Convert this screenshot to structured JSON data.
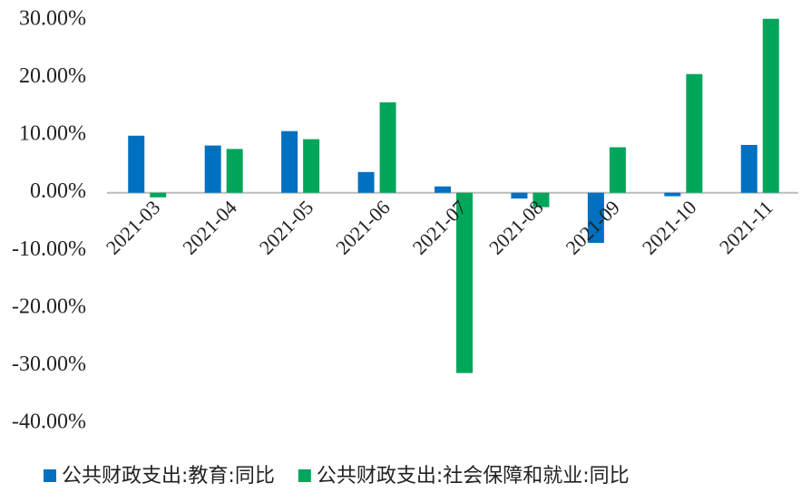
{
  "chart_data": {
    "type": "bar",
    "categories": [
      "2021-03",
      "2021-04",
      "2021-05",
      "2021-06",
      "2021-07",
      "2021-08",
      "2021-09",
      "2021-10",
      "2021-11"
    ],
    "series": [
      {
        "name": "公共财政支出:教育:同比",
        "color": "#0070c0",
        "values": [
          9.9,
          8.2,
          10.7,
          3.6,
          1.1,
          -1.0,
          -8.7,
          -0.6,
          8.3
        ]
      },
      {
        "name": "公共财政支出:社会保障和就业:同比",
        "color": "#00a65a",
        "values": [
          -0.8,
          7.6,
          9.3,
          15.7,
          -31.3,
          -2.5,
          7.9,
          20.6,
          30.2
        ]
      }
    ],
    "ylim": [
      -40,
      30.5
    ],
    "yticks": [
      {
        "value": -40,
        "label": "-40.00%"
      },
      {
        "value": -30,
        "label": "-30.00%"
      },
      {
        "value": -20,
        "label": "-20.00%"
      },
      {
        "value": -10,
        "label": "-10.00%"
      },
      {
        "value": 0,
        "label": "0.00%"
      },
      {
        "value": 10,
        "label": "10.00%"
      },
      {
        "value": 20,
        "label": "20.00%"
      },
      {
        "value": 30,
        "label": "30.00%"
      }
    ],
    "legend": "bottom"
  }
}
